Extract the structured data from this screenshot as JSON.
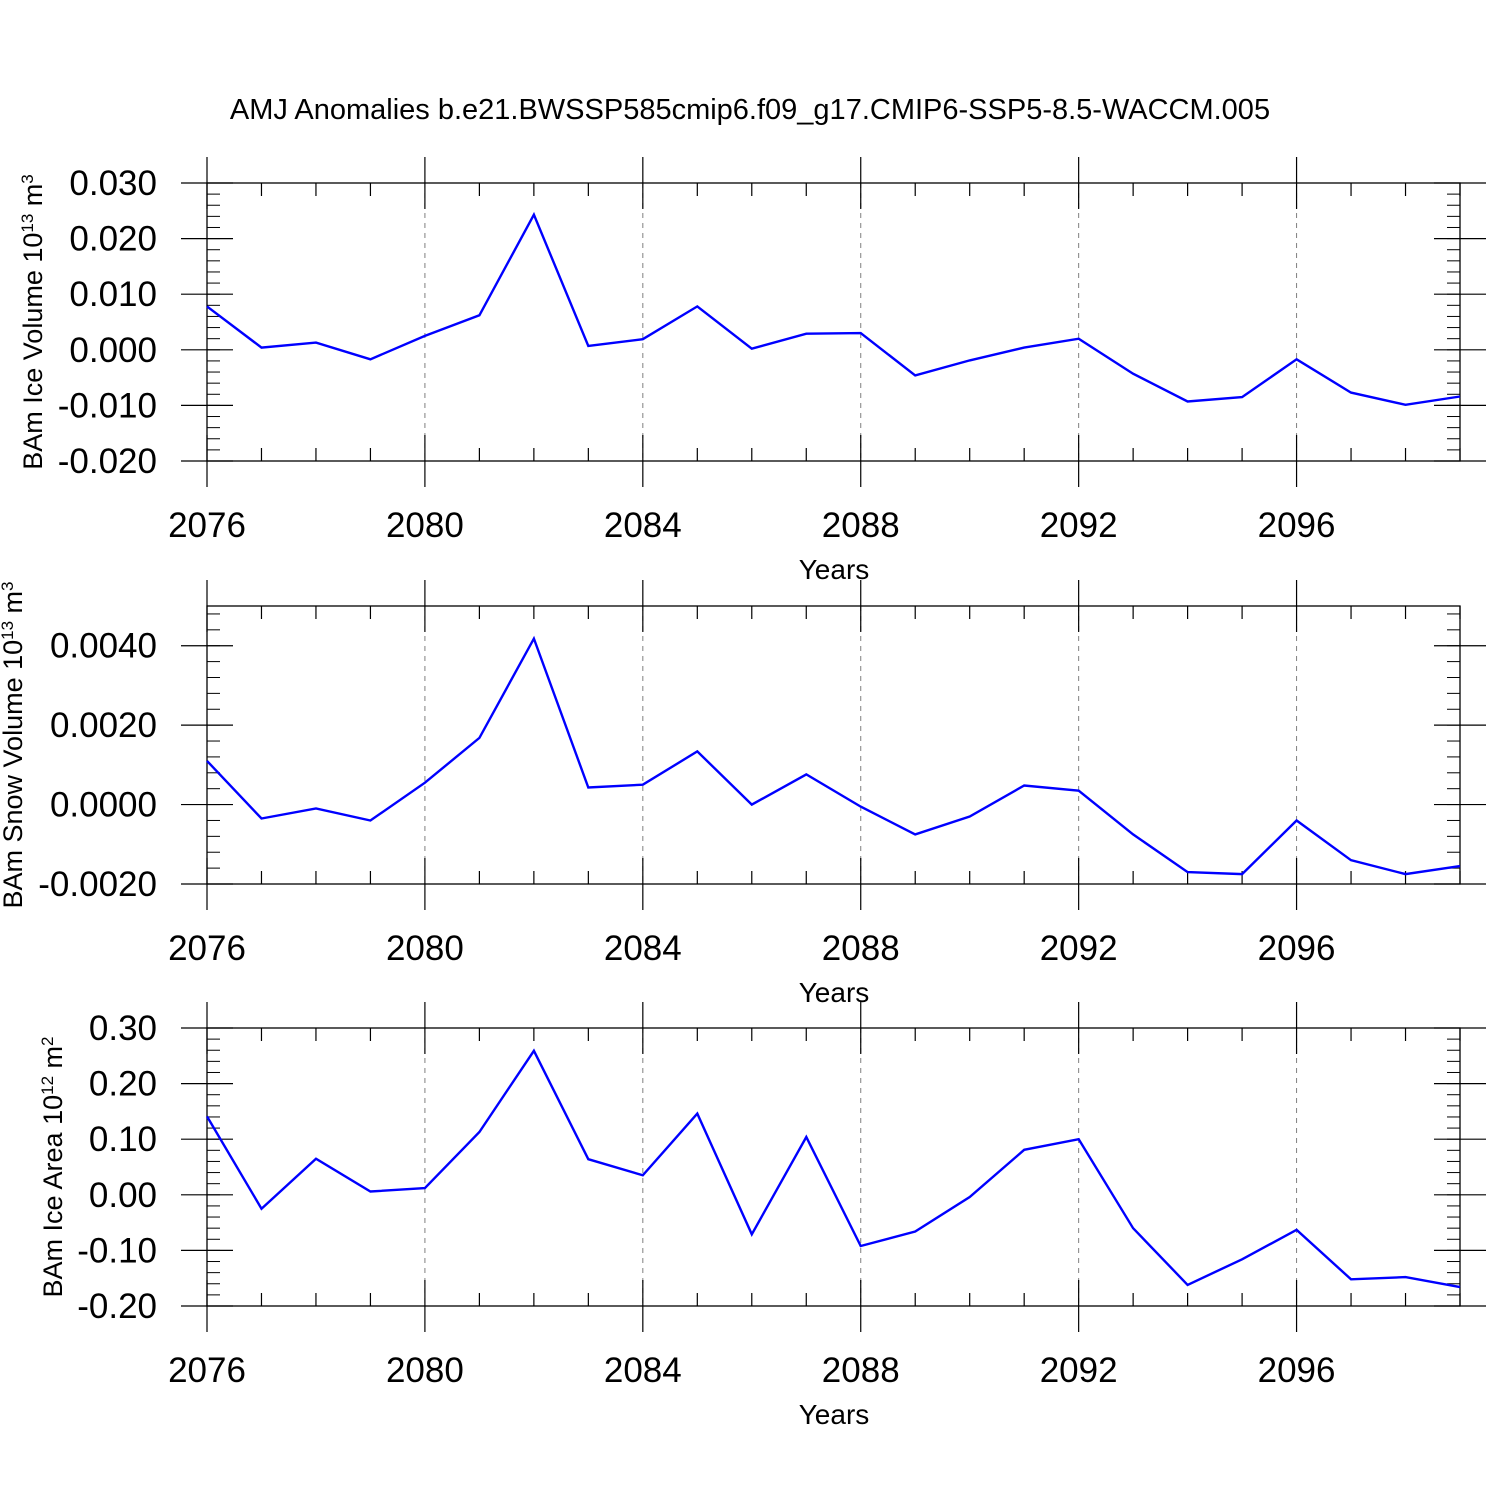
{
  "title": "AMJ Anomalies b.e21.BWSSP585cmip6.f09_g17.CMIP6-SSP5-8.5-WACCM.005",
  "colors": {
    "line": "#0000ff",
    "axis": "#000000",
    "grid": "#808080"
  },
  "chart_data": [
    {
      "type": "line",
      "xlabel": "Years",
      "ylabel": {
        "text": "BAm Ice Volume 10",
        "exp": "13",
        "unit": " m",
        "unit_exp": "3"
      },
      "xlim": [
        2076,
        2099
      ],
      "ylim": [
        -0.02,
        0.03
      ],
      "x_ticks": [
        "2076",
        "2080",
        "2084",
        "2088",
        "2092",
        "2096"
      ],
      "y_ticks": [
        "-0.020",
        "-0.010",
        "0.000",
        "0.010",
        "0.020",
        "0.030"
      ],
      "grid": "vertical dashed at major x ticks",
      "x": [
        2076,
        2077,
        2078,
        2079,
        2080,
        2081,
        2082,
        2083,
        2084,
        2085,
        2086,
        2087,
        2088,
        2089,
        2090,
        2091,
        2092,
        2093,
        2094,
        2095,
        2096,
        2097,
        2098,
        2099
      ],
      "values": [
        0.0078,
        0.0004,
        0.0013,
        -0.0017,
        0.0025,
        0.0062,
        0.0243,
        0.0007,
        0.0019,
        0.0078,
        0.0002,
        0.0029,
        0.003,
        -0.0046,
        -0.0019,
        0.0004,
        0.002,
        -0.0043,
        -0.0093,
        -0.0085,
        -0.0017,
        -0.0077,
        -0.0099,
        -0.0084
      ]
    },
    {
      "type": "line",
      "xlabel": "Years",
      "ylabel": {
        "text": "BAm Snow Volume 10",
        "exp": "13",
        "unit": " m",
        "unit_exp": "3"
      },
      "xlim": [
        2076,
        2099
      ],
      "ylim": [
        -0.002,
        0.005
      ],
      "x_ticks": [
        "2076",
        "2080",
        "2084",
        "2088",
        "2092",
        "2096"
      ],
      "y_ticks": [
        "-0.0020",
        "0.0000",
        "0.0020",
        "0.0040"
      ],
      "grid": "vertical dashed at major x ticks",
      "x": [
        2076,
        2077,
        2078,
        2079,
        2080,
        2081,
        2082,
        2083,
        2084,
        2085,
        2086,
        2087,
        2088,
        2089,
        2090,
        2091,
        2092,
        2093,
        2094,
        2095,
        2096,
        2097,
        2098,
        2099
      ],
      "values": [
        0.0011,
        -0.00035,
        -0.0001,
        -0.0004,
        0.00055,
        0.00168,
        0.00418,
        0.00043,
        0.0005,
        0.00134,
        0.0,
        0.00076,
        -5e-05,
        -0.00075,
        -0.0003,
        0.00048,
        0.00035,
        -0.00075,
        -0.0017,
        -0.00175,
        -0.0004,
        -0.0014,
        -0.00175,
        -0.00155
      ]
    },
    {
      "type": "line",
      "xlabel": "Years",
      "ylabel": {
        "text": "BAm Ice Area 10",
        "exp": "12",
        "unit": " m",
        "unit_exp": "2"
      },
      "xlim": [
        2076,
        2099
      ],
      "ylim": [
        -0.2,
        0.3
      ],
      "x_ticks": [
        "2076",
        "2080",
        "2084",
        "2088",
        "2092",
        "2096"
      ],
      "y_ticks": [
        "-0.20",
        "-0.10",
        "0.00",
        "0.10",
        "0.20",
        "0.30"
      ],
      "grid": "vertical dashed at major x ticks",
      "x": [
        2076,
        2077,
        2078,
        2079,
        2080,
        2081,
        2082,
        2083,
        2084,
        2085,
        2086,
        2087,
        2088,
        2089,
        2090,
        2091,
        2092,
        2093,
        2094,
        2095,
        2096,
        2097,
        2098,
        2099
      ],
      "values": [
        0.141,
        -0.025,
        0.065,
        0.006,
        0.012,
        0.113,
        0.259,
        0.064,
        0.035,
        0.146,
        -0.071,
        0.104,
        -0.092,
        -0.066,
        -0.004,
        0.081,
        0.1,
        -0.06,
        -0.162,
        -0.116,
        -0.063,
        -0.152,
        -0.148,
        -0.166
      ]
    }
  ]
}
